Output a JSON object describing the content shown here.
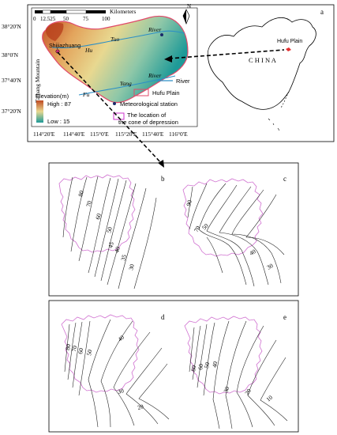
{
  "top_panel": {
    "letter": "a",
    "scale_numbers": [
      "0",
      "12.525",
      "50",
      "75",
      "100"
    ],
    "scale_unit": "Kilometers",
    "north": "N",
    "lat_labels": [
      "38°20'N",
      "38°0'N",
      "37°40'N",
      "37°20'N"
    ],
    "lon_labels": [
      "114°20'E",
      "114°40'E",
      "115°0'E",
      "115°20'E",
      "115°40'E",
      "116°0'E"
    ],
    "mountain": "Taihang Mountain",
    "city": "Shijiazhuang",
    "rivers": {
      "tuo": "Tuo",
      "hu": "Hu",
      "fu": "Fu",
      "yang": "Yang",
      "river1": "River",
      "river2": "River"
    },
    "legend": {
      "elevation_title": "Elevation(m)",
      "high": "High : 87",
      "low": "Low : 15",
      "river": "River",
      "plain": "Hufu Plain",
      "station": "Meteorological station",
      "cone_line1": "The location of",
      "cone_line2": "the cone of depression"
    },
    "china_label": "C H I N A",
    "china_plain": "Hufu Plain",
    "colors": {
      "high": "#c8562a",
      "mid": "#e8d08a",
      "low": "#1e9e9a",
      "plain_outline": "#e04a6a",
      "cone_box": "#cc33cc",
      "river": "#4a90c8"
    }
  },
  "contour_panels": [
    {
      "letter": "b",
      "labels": [
        "80",
        "70",
        "60",
        "50",
        "45",
        "40",
        "35",
        "30"
      ]
    },
    {
      "letter": "c",
      "labels": [
        "90",
        "70",
        "50",
        "40",
        "30"
      ]
    },
    {
      "letter": "d",
      "labels": [
        "80",
        "70",
        "60",
        "50",
        "40",
        "30",
        "20"
      ]
    },
    {
      "letter": "e",
      "labels": [
        "80",
        "60",
        "50",
        "40",
        "30",
        "20",
        "10"
      ]
    }
  ]
}
